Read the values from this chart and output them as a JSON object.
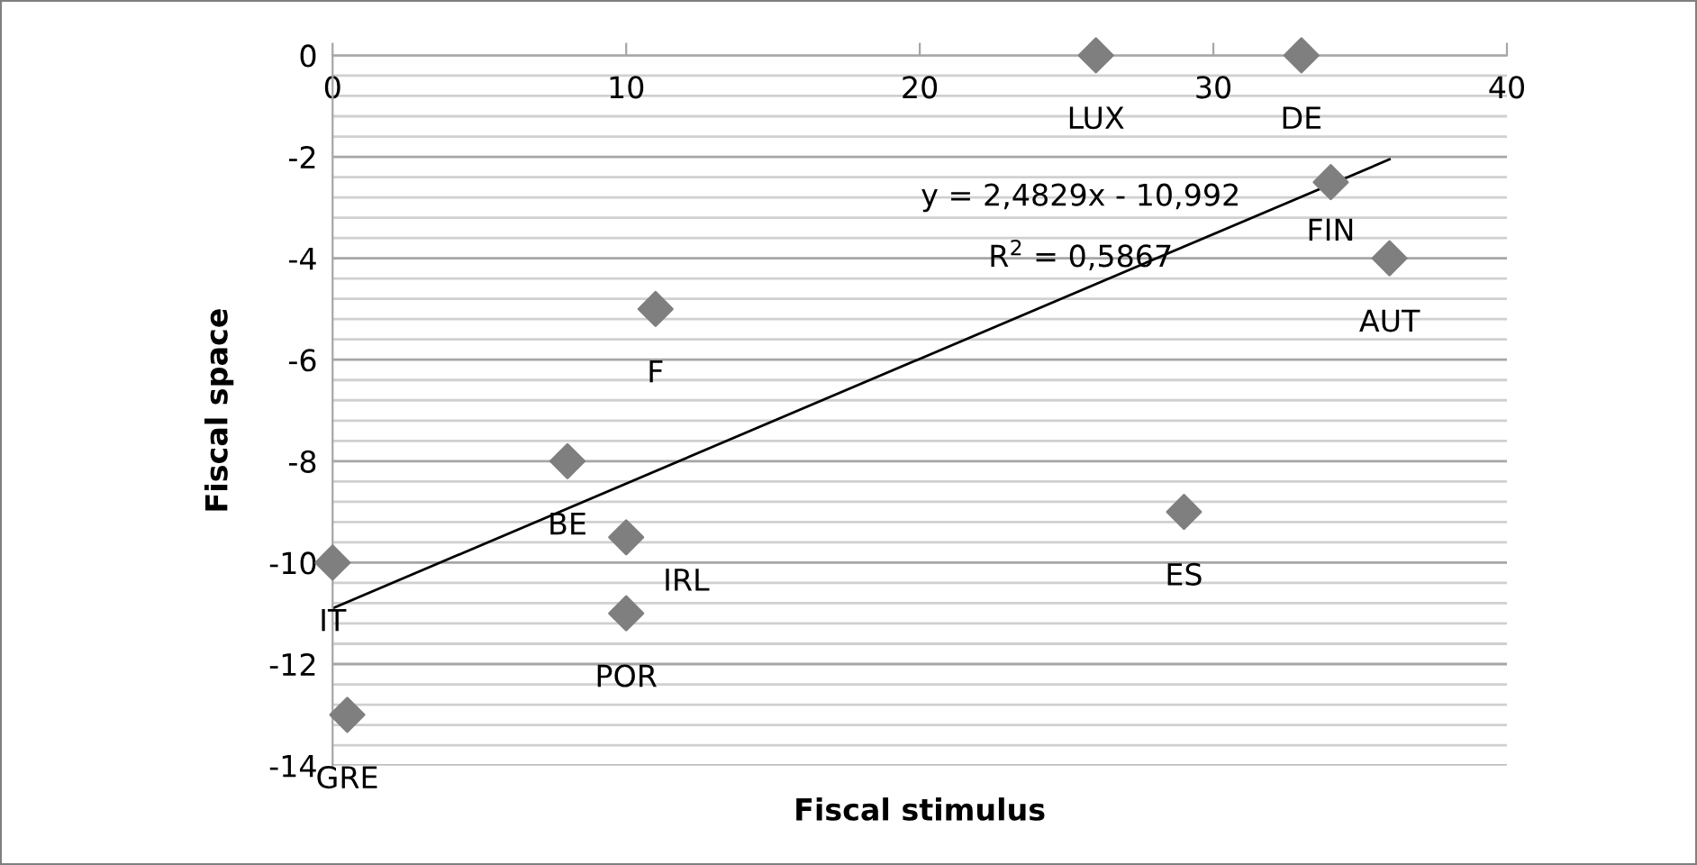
{
  "chart_data": {
    "type": "scatter",
    "xlabel": "Fiscal stimulus",
    "ylabel": "Fiscal space",
    "series": [
      {
        "marker": "diamond",
        "color": "#7f7f7f",
        "x": [
          26,
          33,
          34,
          36,
          11,
          8,
          10,
          0,
          10,
          0.5,
          29
        ],
        "values": [
          0,
          0,
          -2.5,
          -4,
          -5,
          -8,
          -9.5,
          -10,
          -11,
          -13,
          -9
        ]
      },
      {
        "type": "line",
        "marker": "none",
        "color": "#000000",
        "x": [
          0,
          36
        ],
        "values": [
          -10.9,
          -2.05
        ]
      }
    ],
    "annotations": [
      {
        "text": "LUX",
        "x": 26,
        "y": 0
      },
      {
        "text": "DE",
        "x": 33,
        "y": 0
      },
      {
        "text": "FIN",
        "x": 34,
        "y": -2.5
      },
      {
        "text": "AUT",
        "x": 36,
        "y": -4
      },
      {
        "text": "F",
        "x": 11,
        "y": -5
      },
      {
        "text": "BE",
        "x": 8,
        "y": -8
      },
      {
        "text": "IRL",
        "x": 10,
        "y": -9.5
      },
      {
        "text": "IT",
        "x": 0,
        "y": -10
      },
      {
        "text": "POR",
        "x": 10,
        "y": -11
      },
      {
        "text": "GRE",
        "x": 0.5,
        "y": -13
      },
      {
        "text": "ES",
        "x": 29,
        "y": -9
      },
      "y = 2,4829x - 10,992",
      "R$^{2}$ = 0,5867"
    ],
    "xlim": [
      0,
      40
    ],
    "ylim": [
      -14,
      0
    ],
    "xticks": [
      0,
      10,
      20,
      30,
      40
    ],
    "yticks": [
      0,
      {
        "value": -0.4,
        "label": null
      },
      {
        "value": -0.8,
        "label": null
      },
      {
        "value": -1.2,
        "label": null
      },
      {
        "value": -1.6,
        "label": null
      },
      -2,
      {
        "value": -2.4,
        "label": null
      },
      {
        "value": -2.8,
        "label": null
      },
      {
        "value": -3.2,
        "label": null
      },
      {
        "value": -3.6,
        "label": null
      },
      -4,
      {
        "value": -4.4,
        "label": null
      },
      {
        "value": -4.8,
        "label": null
      },
      {
        "value": -5.2,
        "label": null
      },
      {
        "value": -5.6,
        "label": null
      },
      -6,
      {
        "value": -6.4,
        "label": null
      },
      {
        "value": -6.8,
        "label": null
      },
      {
        "value": -7.2,
        "label": null
      },
      {
        "value": -7.6,
        "label": null
      },
      -8,
      {
        "value": -8.4,
        "label": null
      },
      {
        "value": -8.8,
        "label": null
      },
      {
        "value": -9.2,
        "label": null
      },
      {
        "value": -9.6,
        "label": null
      },
      -10,
      {
        "value": -10.4,
        "label": null
      },
      {
        "value": -10.8,
        "label": null
      },
      {
        "value": -11.2,
        "label": null
      },
      {
        "value": -11.6,
        "label": null
      },
      -12,
      {
        "value": -12.4,
        "label": null
      },
      {
        "value": -12.8,
        "label": null
      },
      {
        "value": -13.2,
        "label": null
      },
      {
        "value": -13.6,
        "label": null
      },
      -14
    ],
    "grid": "y",
    "legend": false
  }
}
